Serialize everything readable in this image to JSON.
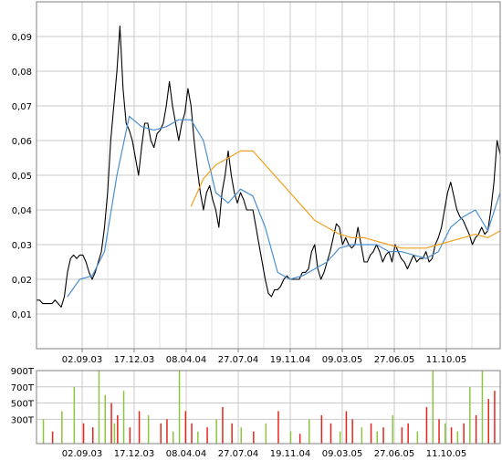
{
  "chart_data": [
    {
      "type": "line",
      "title": "",
      "xlabel": "",
      "ylabel": "",
      "x_tick_labels": [
        "02.09.03",
        "17.12.03",
        "08.04.04",
        "27.07.04",
        "19.11.04",
        "09.03.05",
        "27.06.05",
        "11.10.05"
      ],
      "y_tick_labels": [
        "0,01",
        "0,02",
        "0,03",
        "0,04",
        "0,05",
        "0,06",
        "0,07",
        "0,08",
        "0,09"
      ],
      "ylim": [
        0,
        0.1
      ],
      "grid": true,
      "series": [
        {
          "color": "#000000",
          "x": [
            0,
            1,
            2,
            3,
            4,
            5,
            6,
            7,
            8,
            9,
            10,
            11,
            12,
            13,
            14,
            15,
            16,
            17,
            18,
            19,
            20,
            21,
            22,
            23,
            24,
            25,
            26,
            27,
            28,
            29,
            30,
            31,
            32,
            33,
            34,
            35,
            36,
            37,
            38,
            39,
            40,
            41,
            42,
            43,
            44,
            45,
            46,
            47,
            48,
            49,
            50,
            51,
            52,
            53,
            54,
            55,
            56,
            57,
            58,
            59,
            60,
            61,
            62,
            63,
            64,
            65,
            66,
            67,
            68,
            69,
            70,
            71,
            72,
            73,
            74,
            75,
            76,
            77,
            78,
            79,
            80,
            81,
            82,
            83,
            84,
            85,
            86,
            87,
            88,
            89,
            90,
            91,
            92,
            93,
            94,
            95,
            96,
            97,
            98,
            99,
            100,
            101,
            102,
            103,
            104,
            105,
            106,
            107,
            108,
            109,
            110,
            111,
            112,
            113,
            114,
            115,
            116,
            117,
            118,
            119,
            120,
            121,
            122,
            123,
            124,
            125,
            126,
            127,
            128,
            129,
            130,
            131,
            132,
            133,
            134,
            135,
            136,
            137,
            138,
            139,
            140,
            141,
            142,
            143,
            144,
            145,
            146,
            147,
            148,
            149,
            150
          ],
          "values": [
            0.014,
            0.014,
            0.013,
            0.013,
            0.013,
            0.013,
            0.014,
            0.013,
            0.012,
            0.015,
            0.022,
            0.026,
            0.027,
            0.026,
            0.027,
            0.027,
            0.025,
            0.022,
            0.02,
            0.022,
            0.025,
            0.028,
            0.035,
            0.045,
            0.06,
            0.07,
            0.08,
            0.093,
            0.075,
            0.065,
            0.063,
            0.06,
            0.055,
            0.05,
            0.058,
            0.065,
            0.065,
            0.06,
            0.058,
            0.062,
            0.063,
            0.065,
            0.07,
            0.077,
            0.07,
            0.065,
            0.06,
            0.065,
            0.068,
            0.075,
            0.07,
            0.06,
            0.052,
            0.045,
            0.04,
            0.045,
            0.047,
            0.043,
            0.04,
            0.035,
            0.045,
            0.05,
            0.057,
            0.05,
            0.045,
            0.042,
            0.045,
            0.043,
            0.04,
            0.04,
            0.04,
            0.035,
            0.03,
            0.025,
            0.02,
            0.016,
            0.015,
            0.017,
            0.017,
            0.018,
            0.02,
            0.021,
            0.02,
            0.02,
            0.02,
            0.02,
            0.022,
            0.022,
            0.023,
            0.028,
            0.03,
            0.023,
            0.02,
            0.022,
            0.025,
            0.028,
            0.032,
            0.036,
            0.035,
            0.03,
            0.032,
            0.03,
            0.029,
            0.03,
            0.035,
            0.03,
            0.025,
            0.025,
            0.027,
            0.028,
            0.03,
            0.028,
            0.025,
            0.027,
            0.028,
            0.025,
            0.03,
            0.028,
            0.026,
            0.025,
            0.023,
            0.025,
            0.027,
            0.025,
            0.026,
            0.026,
            0.028,
            0.025,
            0.026,
            0.03,
            0.032,
            0.035,
            0.04,
            0.045,
            0.048,
            0.044,
            0.04,
            0.038,
            0.037,
            0.035,
            0.033,
            0.03,
            0.032,
            0.033,
            0.035,
            0.033,
            0.034,
            0.04,
            0.048,
            0.06,
            0.056
          ]
        },
        {
          "color": "#4a8fd0",
          "x": [
            10,
            14,
            18,
            22,
            26,
            30,
            34,
            38,
            42,
            46,
            50,
            54,
            58,
            62,
            66,
            70,
            74,
            78,
            82,
            86,
            90,
            94,
            98,
            102,
            106,
            110,
            114,
            118,
            122,
            126,
            130,
            134,
            138,
            142,
            146,
            150
          ],
          "values": [
            0.015,
            0.02,
            0.021,
            0.028,
            0.05,
            0.067,
            0.064,
            0.063,
            0.064,
            0.066,
            0.066,
            0.06,
            0.045,
            0.042,
            0.046,
            0.044,
            0.035,
            0.022,
            0.02,
            0.021,
            0.023,
            0.025,
            0.029,
            0.03,
            0.03,
            0.03,
            0.028,
            0.028,
            0.027,
            0.026,
            0.028,
            0.035,
            0.038,
            0.04,
            0.034,
            0.045
          ]
        },
        {
          "color": "#f0a020",
          "x": [
            50,
            54,
            58,
            62,
            66,
            70,
            74,
            78,
            82,
            86,
            90,
            94,
            98,
            102,
            106,
            110,
            114,
            118,
            122,
            126,
            130,
            134,
            138,
            142,
            146,
            150
          ],
          "values": [
            0.041,
            0.049,
            0.053,
            0.055,
            0.057,
            0.057,
            0.053,
            0.049,
            0.045,
            0.041,
            0.037,
            0.035,
            0.033,
            0.032,
            0.032,
            0.031,
            0.03,
            0.029,
            0.029,
            0.029,
            0.03,
            0.031,
            0.032,
            0.033,
            0.032,
            0.034
          ]
        }
      ]
    },
    {
      "type": "bar",
      "title": "",
      "xlabel": "",
      "ylabel": "",
      "x_tick_labels": [
        "02.09.03",
        "17.12.03",
        "08.04.04",
        "27.07.04",
        "19.11.04",
        "09.03.05",
        "27.06.05",
        "11.10.05"
      ],
      "y_tick_labels": [
        "300T",
        "500T",
        "700T",
        "900T"
      ],
      "ylim": [
        0,
        900
      ],
      "grid": true,
      "up_color": "#8cc63f",
      "down_color": "#e8251a",
      "x": [
        2,
        5,
        8,
        12,
        15,
        18,
        20,
        22,
        24,
        25,
        26,
        28,
        30,
        33,
        36,
        40,
        42,
        44,
        46,
        48,
        50,
        52,
        55,
        58,
        60,
        63,
        66,
        70,
        74,
        78,
        82,
        85,
        88,
        92,
        95,
        98,
        100,
        102,
        105,
        108,
        110,
        112,
        115,
        118,
        120,
        123,
        126,
        128,
        130,
        132,
        134,
        136,
        138,
        140,
        142,
        144,
        146,
        148
      ],
      "values": [
        300,
        150,
        400,
        700,
        250,
        200,
        900,
        600,
        500,
        250,
        350,
        650,
        200,
        400,
        350,
        250,
        300,
        150,
        900,
        400,
        250,
        150,
        200,
        300,
        450,
        250,
        200,
        150,
        250,
        400,
        150,
        120,
        300,
        350,
        250,
        150,
        400,
        300,
        200,
        250,
        150,
        200,
        350,
        200,
        250,
        150,
        450,
        900,
        300,
        250,
        200,
        150,
        250,
        700,
        350,
        900,
        550,
        650
      ],
      "directions": [
        "up",
        "down",
        "up",
        "up",
        "down",
        "down",
        "up",
        "up",
        "down",
        "up",
        "down",
        "up",
        "down",
        "down",
        "up",
        "down",
        "down",
        "up",
        "up",
        "down",
        "down",
        "up",
        "down",
        "up",
        "down",
        "down",
        "up",
        "down",
        "up",
        "down",
        "up",
        "down",
        "up",
        "down",
        "down",
        "up",
        "down",
        "down",
        "up",
        "down",
        "up",
        "down",
        "up",
        "down",
        "down",
        "up",
        "down",
        "up",
        "down",
        "up",
        "down",
        "up",
        "down",
        "up",
        "down",
        "up",
        "down",
        "down"
      ]
    }
  ]
}
